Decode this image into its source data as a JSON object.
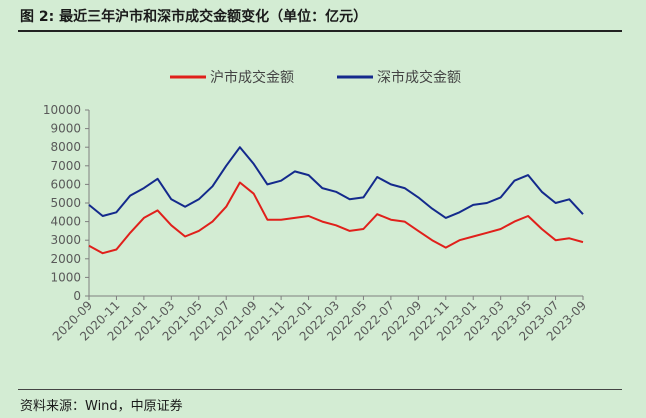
{
  "figure": {
    "title": "图 2:  最近三年沪市和深市成交金额变化（单位：亿元）",
    "source": "资料来源：Wind，中原证券"
  },
  "chart_data": {
    "type": "line",
    "title": "",
    "xlabel": "",
    "ylabel": "",
    "ylim": [
      0,
      10000
    ],
    "y_ticks": [
      0,
      1000,
      2000,
      3000,
      4000,
      5000,
      6000,
      7000,
      8000,
      9000,
      10000
    ],
    "x_tick_labels": [
      "2020-09",
      "2020-11",
      "2021-01",
      "2021-03",
      "2021-05",
      "2021-07",
      "2021-09",
      "2021-11",
      "2022-01",
      "2022-03",
      "2022-05",
      "2022-07",
      "2022-09",
      "2022-11",
      "2023-01",
      "2023-03",
      "2023-05",
      "2023-07",
      "2023-09"
    ],
    "grid": false,
    "legend_position": "top-center",
    "x": [
      "2020-09",
      "2020-10",
      "2020-11",
      "2020-12",
      "2021-01",
      "2021-02",
      "2021-03",
      "2021-04",
      "2021-05",
      "2021-06",
      "2021-07",
      "2021-08",
      "2021-09",
      "2021-10",
      "2021-11",
      "2021-12",
      "2022-01",
      "2022-02",
      "2022-03",
      "2022-04",
      "2022-05",
      "2022-06",
      "2022-07",
      "2022-08",
      "2022-09",
      "2022-10",
      "2022-11",
      "2022-12",
      "2023-01",
      "2023-02",
      "2023-03",
      "2023-04",
      "2023-05",
      "2023-06",
      "2023-07",
      "2023-08",
      "2023-09"
    ],
    "series": [
      {
        "name": "沪市成交金额",
        "color": "#e0201b",
        "values": [
          2700,
          2300,
          2500,
          3400,
          4200,
          4600,
          3800,
          3200,
          3500,
          4000,
          4800,
          6100,
          5500,
          4100,
          4100,
          4200,
          4300,
          4000,
          3800,
          3500,
          3600,
          4400,
          4100,
          4000,
          3500,
          3000,
          2600,
          3000,
          3200,
          3400,
          3600,
          4000,
          4300,
          3600,
          3000,
          3100,
          2900
        ]
      },
      {
        "name": "深市成交金额",
        "color": "#142a8c",
        "values": [
          4900,
          4300,
          4500,
          5400,
          5800,
          6300,
          5200,
          4800,
          5200,
          5900,
          7000,
          8000,
          7100,
          6000,
          6200,
          6700,
          6500,
          5800,
          5600,
          5200,
          5300,
          6400,
          6000,
          5800,
          5300,
          4700,
          4200,
          4500,
          4900,
          5000,
          5300,
          6200,
          6500,
          5600,
          5000,
          5200,
          4400
        ]
      }
    ]
  }
}
